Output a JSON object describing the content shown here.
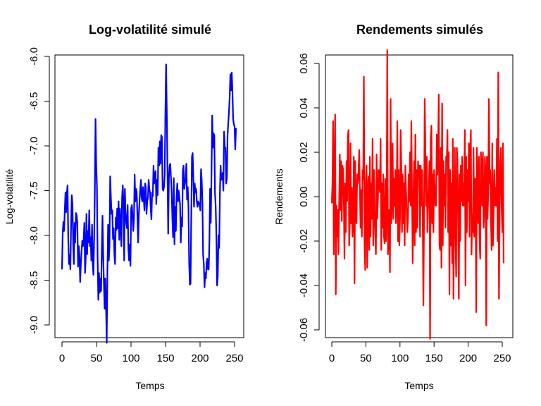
{
  "chart_data": [
    {
      "type": "line",
      "title": "Log-volatilité simulé",
      "xlabel": "Temps",
      "ylabel": "Log-volatilité",
      "xlim": [
        0,
        252
      ],
      "ylim": [
        -9.2,
        -6.0
      ],
      "x_ticks": [
        0,
        50,
        100,
        150,
        200,
        250
      ],
      "x_tick_labels": [
        "0",
        "50",
        "100",
        "150",
        "200",
        "250"
      ],
      "y_ticks": [
        -6.0,
        -6.5,
        -7.0,
        -7.5,
        -8.0,
        -8.5,
        -9.0
      ],
      "y_tick_labels": [
        "-6.0",
        "-6.5",
        "-7.0",
        "-7.5",
        "-8.0",
        "-8.5",
        "-9.0"
      ],
      "grid": false,
      "series": [
        {
          "color": "#0000ff",
          "values": [
            -8.38,
            -7.98,
            -7.85,
            -7.95,
            -7.72,
            -7.52,
            -7.74,
            -7.52,
            -7.44,
            -8.05,
            -8.32,
            -8.22,
            -8.38,
            -7.9,
            -7.55,
            -7.65,
            -8.1,
            -8.32,
            -7.86,
            -8.08,
            -7.75,
            -7.78,
            -7.86,
            -8.35,
            -8.12,
            -8.22,
            -8.52,
            -8.32,
            -8.18,
            -8.06,
            -8.12,
            -8.04,
            -7.86,
            -8.42,
            -8.25,
            -7.76,
            -8.21,
            -7.95,
            -8.08,
            -7.72,
            -8.12,
            -8.02,
            -8.28,
            -7.88,
            -8.32,
            -8.44,
            -8.05,
            -7.52,
            -6.7,
            -7.22,
            -7.45,
            -8.25,
            -8.72,
            -8.42,
            -8.64,
            -8.48,
            -8.62,
            -8.16,
            -7.78,
            -8.22,
            -8.54,
            -8.82,
            -8.48,
            -8.78,
            -9.2,
            -8.4,
            -7.88,
            -8.28,
            -8.12,
            -7.34,
            -7.58,
            -7.76,
            -7.72,
            -8.04,
            -7.92,
            -8.22,
            -8.32,
            -7.8,
            -7.94,
            -7.7,
            -7.92,
            -7.62,
            -8.05,
            -7.7,
            -7.9,
            -8.12,
            -7.58,
            -7.44,
            -7.64,
            -8.28,
            -7.48,
            -7.74,
            -7.86,
            -7.92,
            -7.66,
            -8.15,
            -8.28,
            -8.1,
            -8.34,
            -7.7,
            -7.66,
            -7.78,
            -7.95,
            -7.82,
            -7.32,
            -7.62,
            -7.48,
            -7.52,
            -7.8,
            -8.08,
            -7.76,
            -7.62,
            -7.48,
            -7.38,
            -7.58,
            -7.62,
            -7.46,
            -7.58,
            -7.72,
            -7.42,
            -7.46,
            -7.76,
            -7.62,
            -7.58,
            -7.38,
            -7.48,
            -7.52,
            -7.7,
            -7.82,
            -7.52,
            -7.56,
            -7.22,
            -7.42,
            -7.34,
            -7.28,
            -7.65,
            -7.38,
            -7.55,
            -7.02,
            -7.22,
            -6.95,
            -7.2,
            -6.88,
            -6.9,
            -7.48,
            -7.5,
            -7.46,
            -7.32,
            -6.62,
            -6.09,
            -6.62,
            -7.28,
            -7.98,
            -7.36,
            -7.22,
            -7.2,
            -7.36,
            -7.52,
            -7.82,
            -8.02,
            -7.36,
            -8.1,
            -7.68,
            -7.95,
            -7.56,
            -7.42,
            -7.62,
            -7.5,
            -7.58,
            -7.65,
            -8.08,
            -7.8,
            -7.9,
            -7.28,
            -7.22,
            -7.48,
            -7.42,
            -7.36,
            -7.2,
            -7.6,
            -7.46,
            -7.68,
            -8.3,
            -8.55,
            -8.54,
            -7.82,
            -7.12,
            -7.08,
            -7.36,
            -7.68,
            -7.42,
            -7.52,
            -7.48,
            -7.62,
            -7.68,
            -7.62,
            -7.64,
            -7.66,
            -7.72,
            -7.26,
            -7.38,
            -7.64,
            -8.22,
            -8.32,
            -8.58,
            -8.42,
            -8.48,
            -8.3,
            -8.26,
            -8.38,
            -8.38,
            -8.06,
            -7.48,
            -7.86,
            -7.3,
            -6.66,
            -7.02,
            -6.86,
            -6.88,
            -7.52,
            -7.68,
            -8.02,
            -8.56,
            -8.46,
            -8.0,
            -8.14,
            -7.54,
            -7.22,
            -7.38,
            -7.36,
            -7.3,
            -7.5,
            -6.84,
            -7.02,
            -7.02,
            -7.42,
            -7.36,
            -6.88,
            -6.74,
            -6.62,
            -6.46,
            -6.2,
            -6.38,
            -6.18,
            -6.4,
            -6.7,
            -6.76,
            -6.78,
            -7.04,
            -6.8
          ]
        }
      ]
    },
    {
      "type": "line",
      "title": "Rendements simulés",
      "xlabel": "Temps",
      "ylabel": "Rendements",
      "xlim": [
        0,
        252
      ],
      "ylim": [
        -0.066,
        0.066
      ],
      "x_ticks": [
        0,
        50,
        100,
        150,
        200,
        250
      ],
      "x_tick_labels": [
        "0",
        "50",
        "100",
        "150",
        "200",
        "250"
      ],
      "y_ticks": [
        0.06,
        0.04,
        0.02,
        0.0,
        -0.02,
        -0.04,
        -0.06
      ],
      "y_tick_labels": [
        "0.06",
        "0.04",
        "0.02",
        "0.00",
        "-0.02",
        "-0.04",
        "-0.06"
      ],
      "grid": false,
      "series": [
        {
          "color": "#ff0000",
          "values": [
            -0.003,
            0.006,
            0.034,
            -0.026,
            0.008,
            0.037,
            -0.044,
            -0.004,
            -0.018,
            -0.006,
            -0.026,
            -0.004,
            0.019,
            -0.006,
            0.016,
            -0.011,
            0.014,
            0.012,
            -0.002,
            -0.028,
            0.006,
            -0.016,
            0.016,
            -0.002,
            0.027,
            0.03,
            -0.022,
            -0.011,
            0.024,
            -0.012,
            0.004,
            -0.018,
            -0.01,
            0.018,
            -0.039,
            0.016,
            -0.008,
            -0.012,
            0.01,
            0.006,
            0.011,
            0.021,
            0.004,
            -0.014,
            0.003,
            -0.018,
            0.012,
            0.008,
            0.054,
            -0.022,
            -0.033,
            0.006,
            0.014,
            -0.032,
            0.002,
            0.009,
            -0.024,
            0.018,
            -0.018,
            0.006,
            -0.01,
            0.026,
            -0.022,
            0.012,
            -0.006,
            -0.018,
            -0.026,
            0.019,
            -0.01,
            -0.002,
            0.012,
            0.006,
            0.002,
            0.026,
            -0.024,
            0.006,
            -0.014,
            0.01,
            -0.018,
            -0.021,
            0.008,
            -0.02,
            -0.006,
            0.066,
            -0.026,
            -0.016,
            -0.006,
            -0.034,
            0.044,
            -0.012,
            -0.002,
            0.024,
            -0.01,
            0.008,
            -0.004,
            0.012,
            -0.012,
            -0.004,
            0.034,
            -0.02,
            0.012,
            -0.022,
            -0.01,
            0.03,
            0.014,
            -0.016,
            0.01,
            -0.012,
            0.006,
            -0.022,
            0.014,
            0.004,
            -0.006,
            -0.016,
            -0.01,
            0.01,
            -0.002,
            0.02,
            -0.004,
            0.034,
            0.001,
            -0.03,
            -0.002,
            0.016,
            -0.022,
            0.028,
            -0.016,
            0.012,
            -0.014,
            0.016,
            0.009,
            0.014,
            -0.018,
            0.014,
            -0.004,
            0.012,
            -0.009,
            -0.049,
            -0.008,
            0.044,
            0.022,
            -0.004,
            0.018,
            -0.016,
            -0.002,
            0.002,
            0.016,
            -0.064,
            0.026,
            0.032,
            -0.012,
            0.01,
            -0.016,
            0.012,
            0.004,
            -0.004,
            -0.004,
            0.028,
            0.01,
            0.022,
            0.046,
            -0.022,
            -0.024,
            0.022,
            -0.032,
            0.042,
            -0.022,
            0.016,
            -0.004,
            0.01,
            -0.014,
            0.018,
            0.016,
            0.03,
            -0.016,
            0.02,
            -0.044,
            0.012,
            -0.022,
            0.006,
            -0.03,
            0.026,
            -0.046,
            -0.012,
            0.022,
            -0.016,
            -0.036,
            0.022,
            0.016,
            -0.01,
            -0.046,
            0.01,
            -0.02,
            0.014,
            -0.002,
            0.018,
            -0.004,
            0.006,
            -0.004,
            0.03,
            -0.04,
            0.018,
            -0.016,
            0.012,
            -0.002,
            0.024,
            -0.018,
            0.02,
            0.03,
            -0.026,
            -0.008,
            -0.016,
            0.022,
            -0.018,
            0.008,
            0.008,
            -0.052,
            0.022,
            0.008,
            -0.012,
            0.018,
            -0.02,
            -0.028,
            0.02,
            0.014,
            -0.004,
            0.02,
            -0.014,
            -0.008,
            0.018,
            0.01,
            -0.058,
            0.018,
            -0.01,
            0.002,
            0.044,
            0.006,
            0.012,
            -0.01,
            -0.024,
            0.024,
            -0.022,
            -0.008,
            0.012,
            -0.004,
            0.004,
            -0.004,
            0.026,
            -0.02,
            0.056,
            -0.046,
            -0.01,
            0.016,
            0.022,
            -0.004,
            -0.016,
            0.024,
            -0.03
          ]
        }
      ]
    }
  ]
}
